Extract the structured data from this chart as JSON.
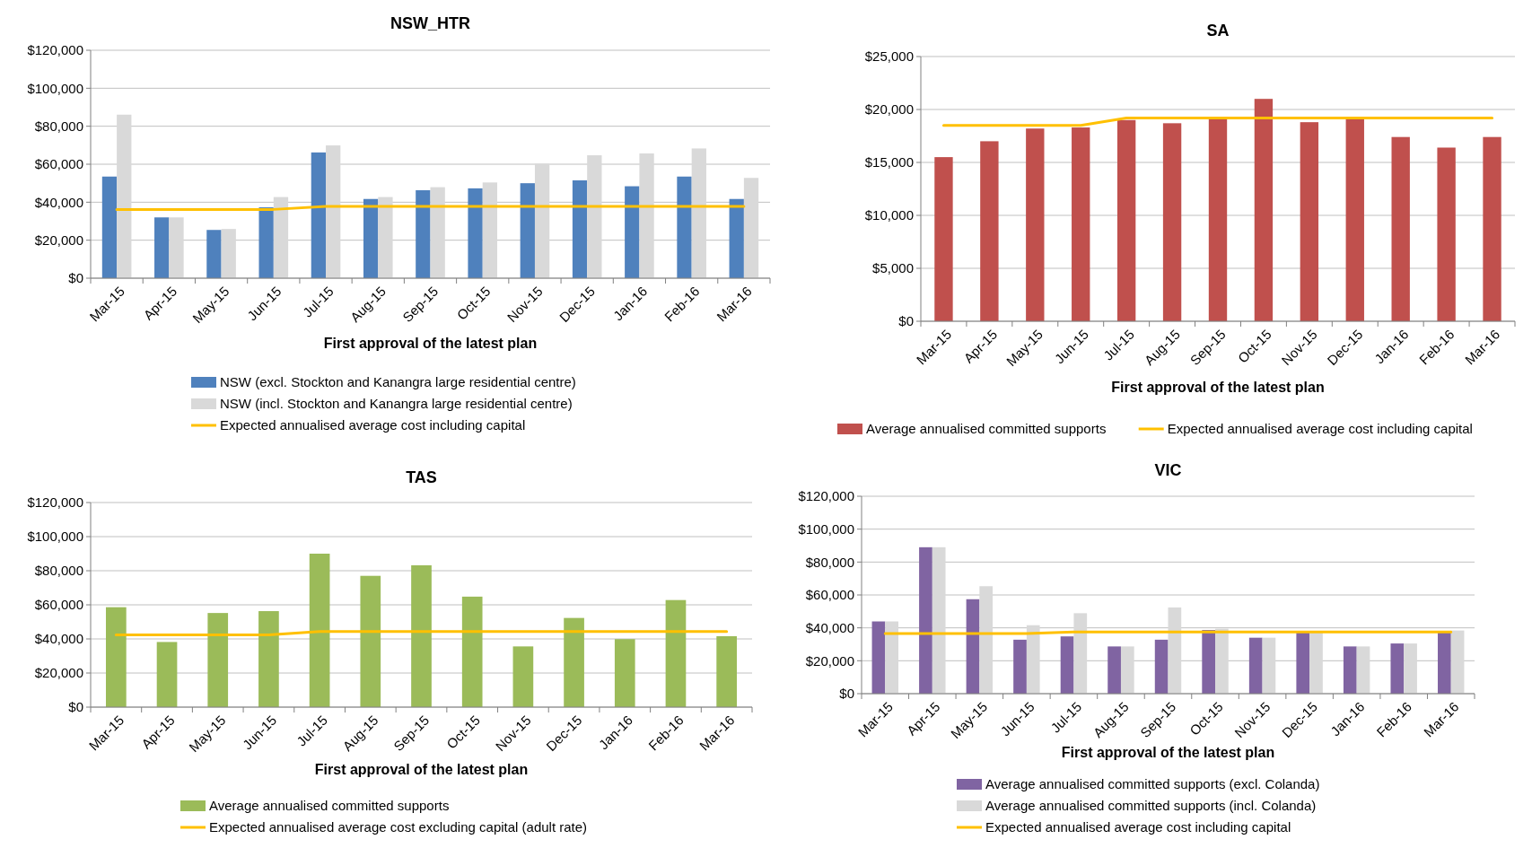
{
  "chart_data": [
    {
      "type": "bar",
      "title": "NSW_HTR",
      "xlabel": "First approval of the latest plan",
      "categories": [
        "Mar-15",
        "Apr-15",
        "May-15",
        "Jun-15",
        "Jul-15",
        "Aug-15",
        "Sep-15",
        "Oct-15",
        "Nov-15",
        "Dec-15",
        "Jan-16",
        "Feb-16",
        "Mar-16"
      ],
      "ylim": [
        0,
        120000
      ],
      "yticks": [
        {
          "value": 0,
          "label": "$0"
        },
        {
          "value": 20000,
          "label": "$20,000"
        },
        {
          "value": 40000,
          "label": "$40,000"
        },
        {
          "value": 60000,
          "label": "$60,000"
        },
        {
          "value": 80000,
          "label": "$80,000"
        },
        {
          "value": 100000,
          "label": "$100,000"
        },
        {
          "value": 120000,
          "label": "$120,000"
        }
      ],
      "grid": "y",
      "legend": "bottom",
      "series": [
        {
          "name": "NSW (excl. Stockton and Kanangra large residential centre)",
          "color": "#4f81bd",
          "values": [
            53500,
            32000,
            25400,
            37300,
            66200,
            41700,
            46300,
            47300,
            50000,
            51500,
            48400,
            53500,
            41700
          ]
        },
        {
          "name": "NSW (incl. Stockton and Kanangra large residential centre)",
          "color": "#d9d9d9",
          "values": [
            86100,
            32000,
            25900,
            42700,
            69900,
            42700,
            47900,
            50400,
            60300,
            64700,
            65700,
            68300,
            52800
          ]
        },
        {
          "name": "Expected annualised average cost including capital",
          "type": "line",
          "color": "#ffc000",
          "values": [
            36200,
            36200,
            36200,
            36200,
            37800,
            37800,
            37800,
            37800,
            37800,
            37800,
            37800,
            37800,
            37800
          ]
        }
      ]
    },
    {
      "type": "bar",
      "title": "SA",
      "xlabel": "First approval of the latest plan",
      "categories": [
        "Mar-15",
        "Apr-15",
        "May-15",
        "Jun-15",
        "Jul-15",
        "Aug-15",
        "Sep-15",
        "Oct-15",
        "Nov-15",
        "Dec-15",
        "Jan-16",
        "Feb-16",
        "Mar-16"
      ],
      "ylim": [
        0,
        25000
      ],
      "yticks": [
        {
          "value": 0,
          "label": "$0"
        },
        {
          "value": 5000,
          "label": "$5,000"
        },
        {
          "value": 10000,
          "label": "$10,000"
        },
        {
          "value": 15000,
          "label": "$15,000"
        },
        {
          "value": 20000,
          "label": "$20,000"
        },
        {
          "value": 25000,
          "label": "$25,000"
        }
      ],
      "grid": "y",
      "legend": "bottom",
      "series": [
        {
          "name": "Average annualised committed supports",
          "color": "#c0504d",
          "values": [
            15500,
            17000,
            18200,
            18300,
            19000,
            18700,
            19200,
            21000,
            18800,
            19200,
            17400,
            16400,
            17400
          ]
        },
        {
          "name": "Expected annualised average cost including capital",
          "type": "line",
          "color": "#ffc000",
          "values": [
            18500,
            18500,
            18500,
            18500,
            19200,
            19200,
            19200,
            19200,
            19200,
            19200,
            19200,
            19200,
            19200
          ]
        }
      ]
    },
    {
      "type": "bar",
      "title": "TAS",
      "xlabel": "First approval of the latest plan",
      "categories": [
        "Mar-15",
        "Apr-15",
        "May-15",
        "Jun-15",
        "Jul-15",
        "Aug-15",
        "Sep-15",
        "Oct-15",
        "Nov-15",
        "Dec-15",
        "Jan-16",
        "Feb-16",
        "Mar-16"
      ],
      "ylim": [
        0,
        120000
      ],
      "yticks": [
        {
          "value": 0,
          "label": "$0"
        },
        {
          "value": 20000,
          "label": "$20,000"
        },
        {
          "value": 40000,
          "label": "$40,000"
        },
        {
          "value": 60000,
          "label": "$60,000"
        },
        {
          "value": 80000,
          "label": "$80,000"
        },
        {
          "value": 100000,
          "label": "$100,000"
        },
        {
          "value": 120000,
          "label": "$120,000"
        }
      ],
      "grid": "y",
      "legend": "bottom",
      "series": [
        {
          "name": "Average annualised committed supports",
          "color": "#9bbb59",
          "values": [
            58600,
            38200,
            55200,
            56300,
            90000,
            77000,
            83200,
            64800,
            35600,
            52300,
            39900,
            62800,
            41600
          ]
        },
        {
          "name": "Expected annualised average cost excluding capital (adult rate)",
          "type": "line",
          "color": "#ffc000",
          "values": [
            42400,
            42400,
            42400,
            42400,
            44400,
            44400,
            44400,
            44400,
            44400,
            44400,
            44400,
            44400,
            44400
          ]
        }
      ]
    },
    {
      "type": "bar",
      "title": "VIC",
      "xlabel": "First approval of the latest plan",
      "categories": [
        "Mar-15",
        "Apr-15",
        "May-15",
        "Jun-15",
        "Jul-15",
        "Aug-15",
        "Sep-15",
        "Oct-15",
        "Nov-15",
        "Dec-15",
        "Jan-16",
        "Feb-16",
        "Mar-16"
      ],
      "ylim": [
        0,
        120000
      ],
      "yticks": [
        {
          "value": 0,
          "label": "$0"
        },
        {
          "value": 20000,
          "label": "$20,000"
        },
        {
          "value": 40000,
          "label": "$40,000"
        },
        {
          "value": 60000,
          "label": "$60,000"
        },
        {
          "value": 80000,
          "label": "$80,000"
        },
        {
          "value": 100000,
          "label": "$100,000"
        },
        {
          "value": 120000,
          "label": "$120,000"
        }
      ],
      "grid": "y",
      "legend": "bottom",
      "series": [
        {
          "name": "Average annualised committed supports (excl. Colanda)",
          "color": "#8064a2",
          "values": [
            43900,
            89000,
            57400,
            32800,
            34800,
            28700,
            32800,
            38700,
            34000,
            38100,
            28700,
            30500,
            38100
          ]
        },
        {
          "name": "Average annualised committed supports (incl. Colanda)",
          "color": "#d9d9d9",
          "values": [
            43900,
            89000,
            65300,
            41600,
            48900,
            28700,
            52400,
            39500,
            34000,
            38100,
            28700,
            30500,
            38400
          ]
        },
        {
          "name": "Expected annualised average cost including capital",
          "type": "line",
          "color": "#ffc000",
          "values": [
            36600,
            36600,
            36600,
            36600,
            37500,
            37500,
            37500,
            37500,
            37500,
            37500,
            37500,
            37500,
            37500
          ]
        }
      ]
    }
  ]
}
